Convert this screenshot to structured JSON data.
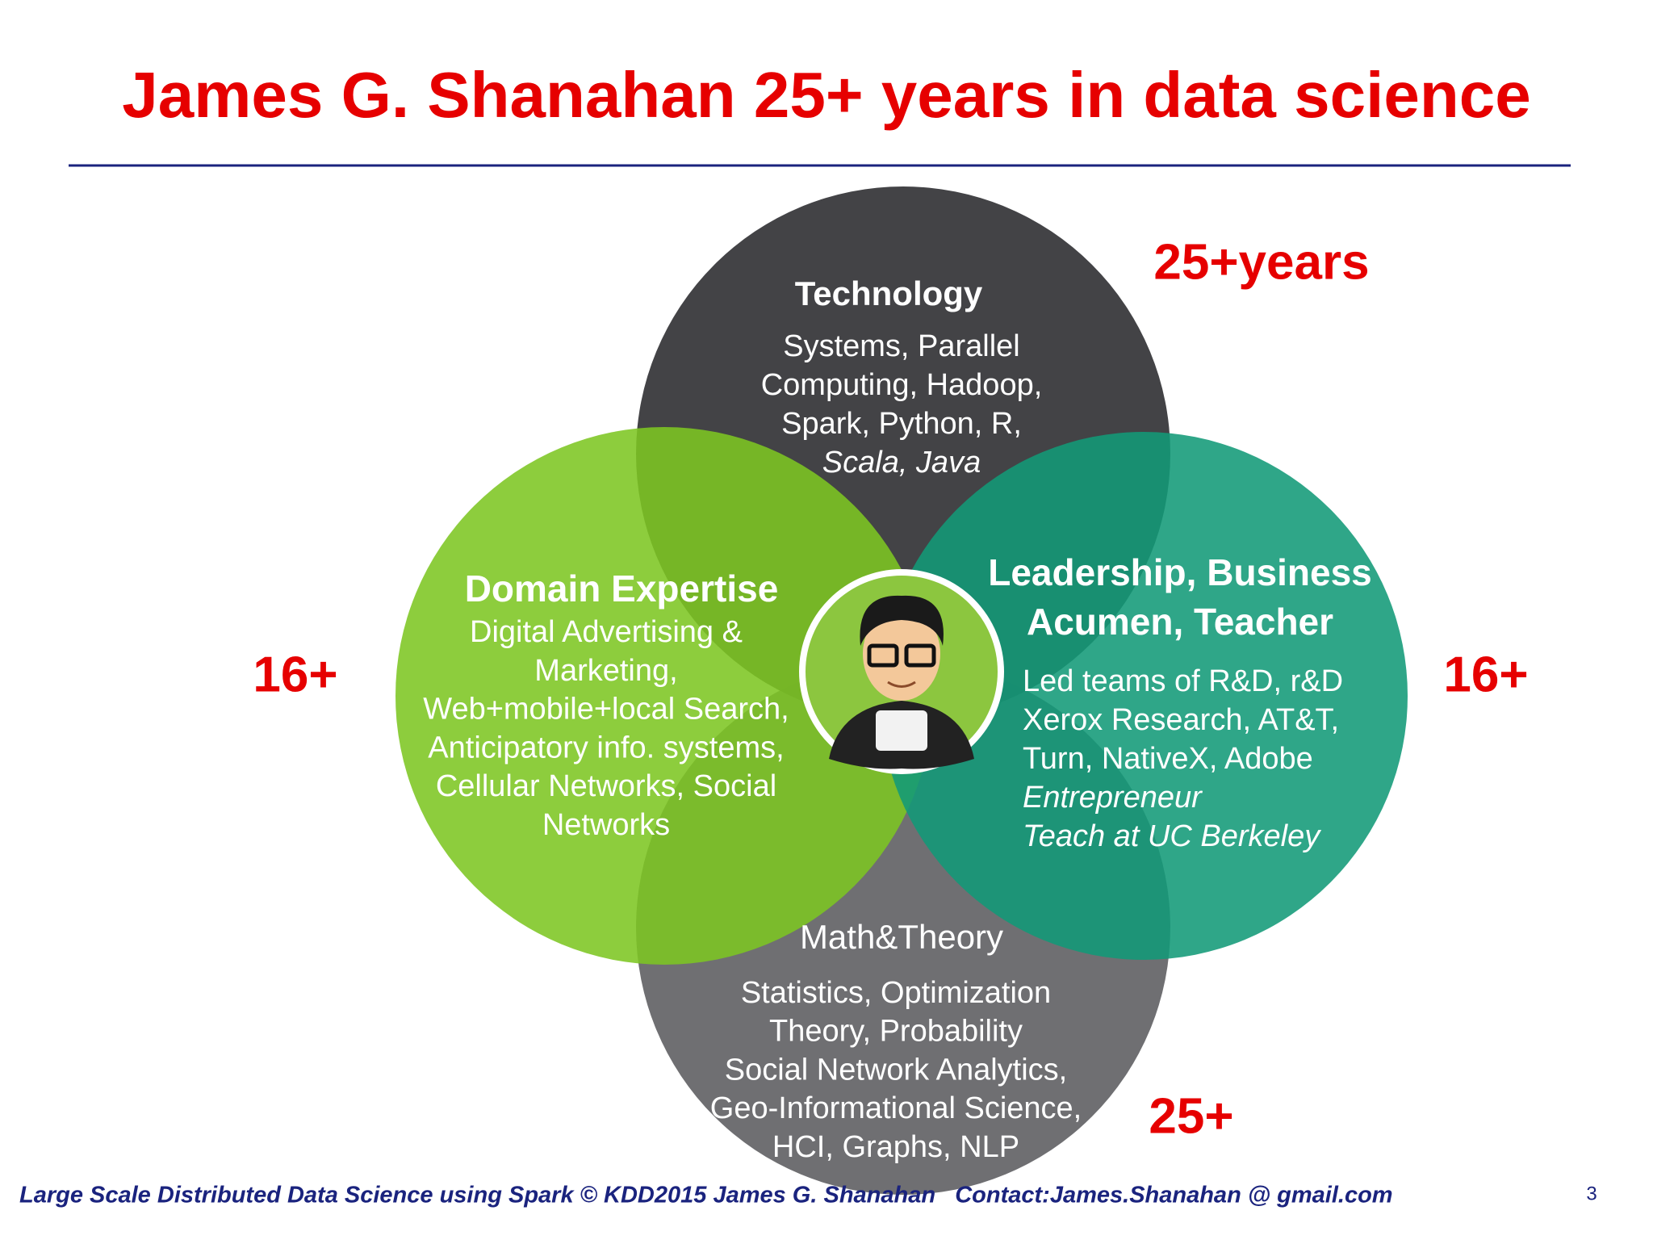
{
  "header": {
    "title": "James G. Shanahan 25+ years in data science"
  },
  "diagram": {
    "circles": [
      {
        "heading": "Math&Theory",
        "lines": [
          "Statistics, Optimization",
          "Theory, Probability",
          "Social Network Analytics,",
          "Geo-Informational Science,",
          "HCI, Graphs, NLP"
        ]
      },
      {
        "heading": "Technology",
        "lines": [
          "Systems, Parallel",
          "Computing, Hadoop,",
          "Spark, Python, R,",
          "Scala, Java"
        ]
      },
      {
        "heading": "Domain Expertise",
        "lines": [
          "Digital Advertising &",
          "Marketing,",
          "Web+mobile+local  Search,",
          "Anticipatory info. systems,",
          "Cellular Networks, Social",
          "Networks"
        ]
      },
      {
        "heading": "Leadership, Business Acumen, Teacher",
        "lines": [
          "Led teams of R&D, r&D",
          "Xerox Research, AT&T,",
          "Turn, NativeX, Adobe",
          "Entrepreneur",
          "Teach at UC Berkeley"
        ]
      }
    ],
    "labels": {
      "technology": "25+years",
      "domain": "16+",
      "leadership": "16+",
      "math": "25+"
    }
  },
  "footer": {
    "text": "Large Scale Distributed Data Science using Spark © KDD2015 James G. Shanahan   Contact:James.Shanahan @ gmail.com",
    "page_number": "3"
  }
}
